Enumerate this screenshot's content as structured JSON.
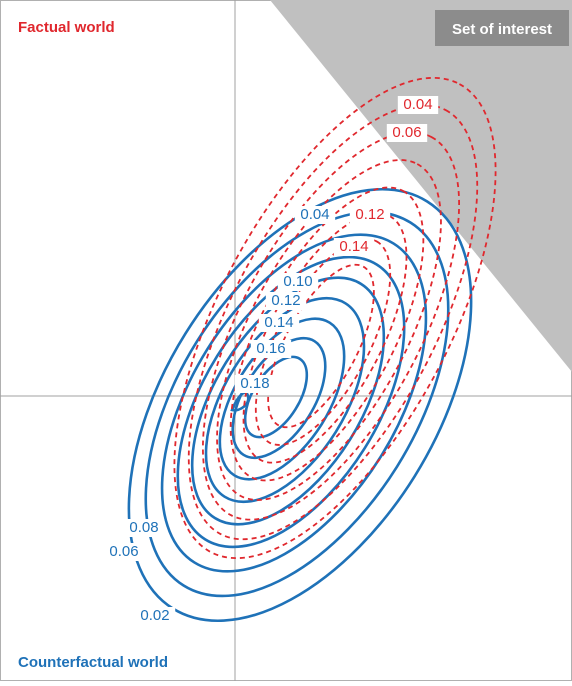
{
  "factual_label": "Factual world",
  "counterfactual_label": "Counterfactual world",
  "set_label": "Set of interest",
  "colors": {
    "factual": "#e0282e",
    "counterfactual": "#1f72b8",
    "set_fill": "#c0c0c0",
    "set_label_bg": "#8c8c8c",
    "axis": "#a0a0a0",
    "frame": "#b0b0b0"
  },
  "blue_labels": [
    "0.02",
    "0.04",
    "0.06",
    "0.08",
    "0.10",
    "0.12",
    "0.14",
    "0.16",
    "0.18"
  ],
  "red_labels": [
    "0.04",
    "0.06",
    "0.12",
    "0.14"
  ]
}
